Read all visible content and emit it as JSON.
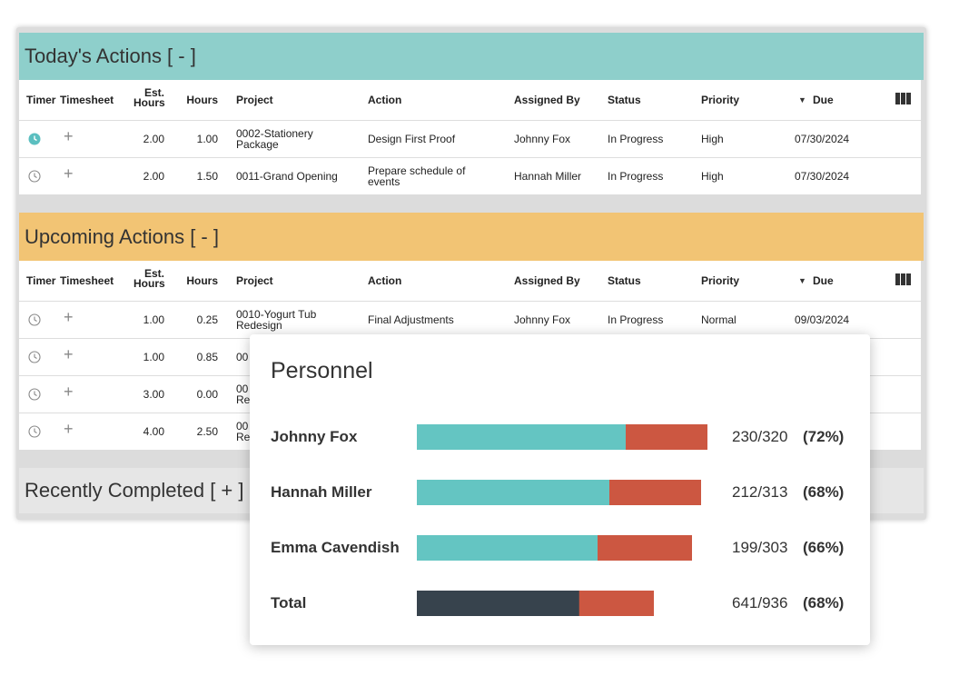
{
  "today": {
    "title": "Today's Actions [ - ]",
    "columns": [
      "Timer",
      "Timesheet",
      "Est. Hours",
      "Hours",
      "Project",
      "Action",
      "Assigned By",
      "Status",
      "Priority",
      "Due"
    ],
    "rows": [
      {
        "timer_active": true,
        "est_hours": "2.00",
        "hours": "1.00",
        "project": "0002-Stationery Package",
        "action": "Design First Proof",
        "assigned_by": "Johnny Fox",
        "status": "In Progress",
        "priority": "High",
        "due": "07/30/2024"
      },
      {
        "timer_active": false,
        "est_hours": "2.00",
        "hours": "1.50",
        "project": "0011-Grand Opening",
        "action": "Prepare schedule of events",
        "assigned_by": "Hannah Miller",
        "status": "In Progress",
        "priority": "High",
        "due": "07/30/2024"
      }
    ]
  },
  "upcoming": {
    "title": "Upcoming Actions [ - ]",
    "columns": [
      "Timer",
      "Timesheet",
      "Est. Hours",
      "Hours",
      "Project",
      "Action",
      "Assigned By",
      "Status",
      "Priority",
      "Due"
    ],
    "rows": [
      {
        "timer_active": false,
        "est_hours": "1.00",
        "hours": "0.25",
        "project": "0010-Yogurt Tub Redesign",
        "action": "Final Adjustments",
        "assigned_by": "Johnny Fox",
        "status": "In Progress",
        "priority": "Normal",
        "due": "09/03/2024"
      },
      {
        "timer_active": false,
        "est_hours": "1.00",
        "hours": "0.85",
        "project": "00"
      },
      {
        "timer_active": false,
        "est_hours": "3.00",
        "hours": "0.00",
        "project": "00\nRe"
      },
      {
        "timer_active": false,
        "est_hours": "4.00",
        "hours": "2.50",
        "project": "00\nRe"
      }
    ]
  },
  "completed": {
    "title": "Recently Completed [ + ]"
  },
  "personnel": {
    "title": "Personnel",
    "used_color": "#64c5c2",
    "total_color": "#37434d",
    "remaining_color": "#cc5741",
    "rows": [
      {
        "name": "Johnny Fox",
        "used": 230,
        "capacity": 320,
        "ratio_label": "230/320",
        "percent_label": "(72%)"
      },
      {
        "name": "Hannah Miller",
        "used": 212,
        "capacity": 313,
        "ratio_label": "212/313",
        "percent_label": "(68%)"
      },
      {
        "name": "Emma Cavendish",
        "used": 199,
        "capacity": 303,
        "ratio_label": "199/303",
        "percent_label": "(66%)"
      }
    ],
    "total": {
      "name": "Total",
      "used": 641,
      "capacity": 936,
      "ratio_label": "641/936",
      "percent_label": "(68%)"
    }
  }
}
